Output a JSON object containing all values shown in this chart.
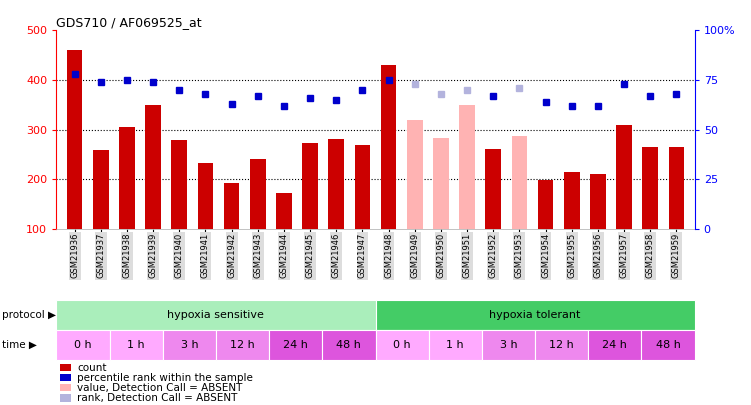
{
  "title": "GDS710 / AF069525_at",
  "samples": [
    "GSM21936",
    "GSM21937",
    "GSM21938",
    "GSM21939",
    "GSM21940",
    "GSM21941",
    "GSM21942",
    "GSM21943",
    "GSM21944",
    "GSM21945",
    "GSM21946",
    "GSM21947",
    "GSM21948",
    "GSM21949",
    "GSM21950",
    "GSM21951",
    "GSM21952",
    "GSM21953",
    "GSM21954",
    "GSM21955",
    "GSM21956",
    "GSM21957",
    "GSM21958",
    "GSM21959"
  ],
  "bar_values": [
    460,
    258,
    305,
    350,
    280,
    232,
    193,
    240,
    173,
    272,
    282,
    268,
    430,
    320,
    283,
    350,
    260,
    287,
    198,
    215,
    210,
    310,
    265,
    265
  ],
  "bar_absent": [
    false,
    false,
    false,
    false,
    false,
    false,
    false,
    false,
    false,
    false,
    false,
    false,
    false,
    true,
    true,
    true,
    false,
    true,
    false,
    false,
    false,
    false,
    false,
    false
  ],
  "dot_values_pct": [
    78,
    74,
    75,
    74,
    70,
    68,
    63,
    67,
    62,
    66,
    65,
    70,
    75,
    73,
    68,
    70,
    67,
    71,
    64,
    62,
    62,
    73,
    67,
    68
  ],
  "dot_absent": [
    false,
    false,
    false,
    false,
    false,
    false,
    false,
    false,
    false,
    false,
    false,
    false,
    false,
    true,
    true,
    true,
    false,
    true,
    false,
    false,
    false,
    false,
    false,
    false
  ],
  "ylim_left": [
    100,
    500
  ],
  "ylim_right": [
    0,
    100
  ],
  "yticks_left": [
    100,
    200,
    300,
    400,
    500
  ],
  "yticks_right": [
    0,
    25,
    50,
    75,
    100
  ],
  "ytick_labels_right": [
    "0",
    "25",
    "50",
    "75",
    "100%"
  ],
  "bar_color_present": "#cc0000",
  "bar_color_absent": "#ffb3b3",
  "dot_color_present": "#0000cc",
  "dot_color_absent": "#b3b3dd",
  "background_color": "#ffffff",
  "protocol_row": [
    {
      "label": "hypoxia sensitive",
      "start": 0,
      "end": 12,
      "color": "#aaeebb"
    },
    {
      "label": "hypoxia tolerant",
      "start": 12,
      "end": 24,
      "color": "#44cc66"
    }
  ],
  "time_row": [
    {
      "label": "0 h",
      "start": 0,
      "end": 2,
      "color": "#ffaaff"
    },
    {
      "label": "1 h",
      "start": 2,
      "end": 4,
      "color": "#ffaaff"
    },
    {
      "label": "3 h",
      "start": 4,
      "end": 6,
      "color": "#ee88ee"
    },
    {
      "label": "12 h",
      "start": 6,
      "end": 8,
      "color": "#ee88ee"
    },
    {
      "label": "24 h",
      "start": 8,
      "end": 10,
      "color": "#dd55dd"
    },
    {
      "label": "48 h",
      "start": 10,
      "end": 12,
      "color": "#dd55dd"
    },
    {
      "label": "0 h",
      "start": 12,
      "end": 14,
      "color": "#ffaaff"
    },
    {
      "label": "1 h",
      "start": 14,
      "end": 16,
      "color": "#ffaaff"
    },
    {
      "label": "3 h",
      "start": 16,
      "end": 18,
      "color": "#ee88ee"
    },
    {
      "label": "12 h",
      "start": 18,
      "end": 20,
      "color": "#ee88ee"
    },
    {
      "label": "24 h",
      "start": 20,
      "end": 22,
      "color": "#dd55dd"
    },
    {
      "label": "48 h",
      "start": 22,
      "end": 24,
      "color": "#dd55dd"
    }
  ],
  "legend_items": [
    {
      "color": "#cc0000",
      "label": "count"
    },
    {
      "color": "#0000cc",
      "label": "percentile rank within the sample"
    },
    {
      "color": "#ffb3b3",
      "label": "value, Detection Call = ABSENT"
    },
    {
      "color": "#b3b3dd",
      "label": "rank, Detection Call = ABSENT"
    }
  ]
}
